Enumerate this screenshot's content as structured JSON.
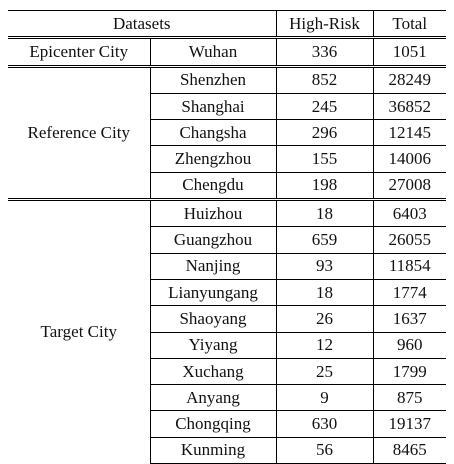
{
  "headers": {
    "datasets": "Datasets",
    "high_risk": "High-Risk",
    "total": "Total"
  },
  "groups": [
    {
      "name": "Epicenter City",
      "rows": [
        {
          "city": "Wuhan",
          "high_risk": "336",
          "total": "1051"
        }
      ]
    },
    {
      "name": "Reference City",
      "rows": [
        {
          "city": "Shenzhen",
          "high_risk": "852",
          "total": "28249"
        },
        {
          "city": "Shanghai",
          "high_risk": "245",
          "total": "36852"
        },
        {
          "city": "Changsha",
          "high_risk": "296",
          "total": "12145"
        },
        {
          "city": "Zhengzhou",
          "high_risk": "155",
          "total": "14006"
        },
        {
          "city": "Chengdu",
          "high_risk": "198",
          "total": "27008"
        }
      ]
    },
    {
      "name": "Target City",
      "rows": [
        {
          "city": "Huizhou",
          "high_risk": "18",
          "total": "6403"
        },
        {
          "city": "Guangzhou",
          "high_risk": "659",
          "total": "26055"
        },
        {
          "city": "Nanjing",
          "high_risk": "93",
          "total": "11854"
        },
        {
          "city": "Lianyungang",
          "high_risk": "18",
          "total": "1774"
        },
        {
          "city": "Shaoyang",
          "high_risk": "26",
          "total": "1637"
        },
        {
          "city": "Yiyang",
          "high_risk": "12",
          "total": "960"
        },
        {
          "city": "Xuchang",
          "high_risk": "25",
          "total": "1799"
        },
        {
          "city": "Anyang",
          "high_risk": "9",
          "total": "875"
        },
        {
          "city": "Chongqing",
          "high_risk": "630",
          "total": "19137"
        },
        {
          "city": "Kunming",
          "high_risk": "56",
          "total": "8465"
        }
      ]
    }
  ]
}
